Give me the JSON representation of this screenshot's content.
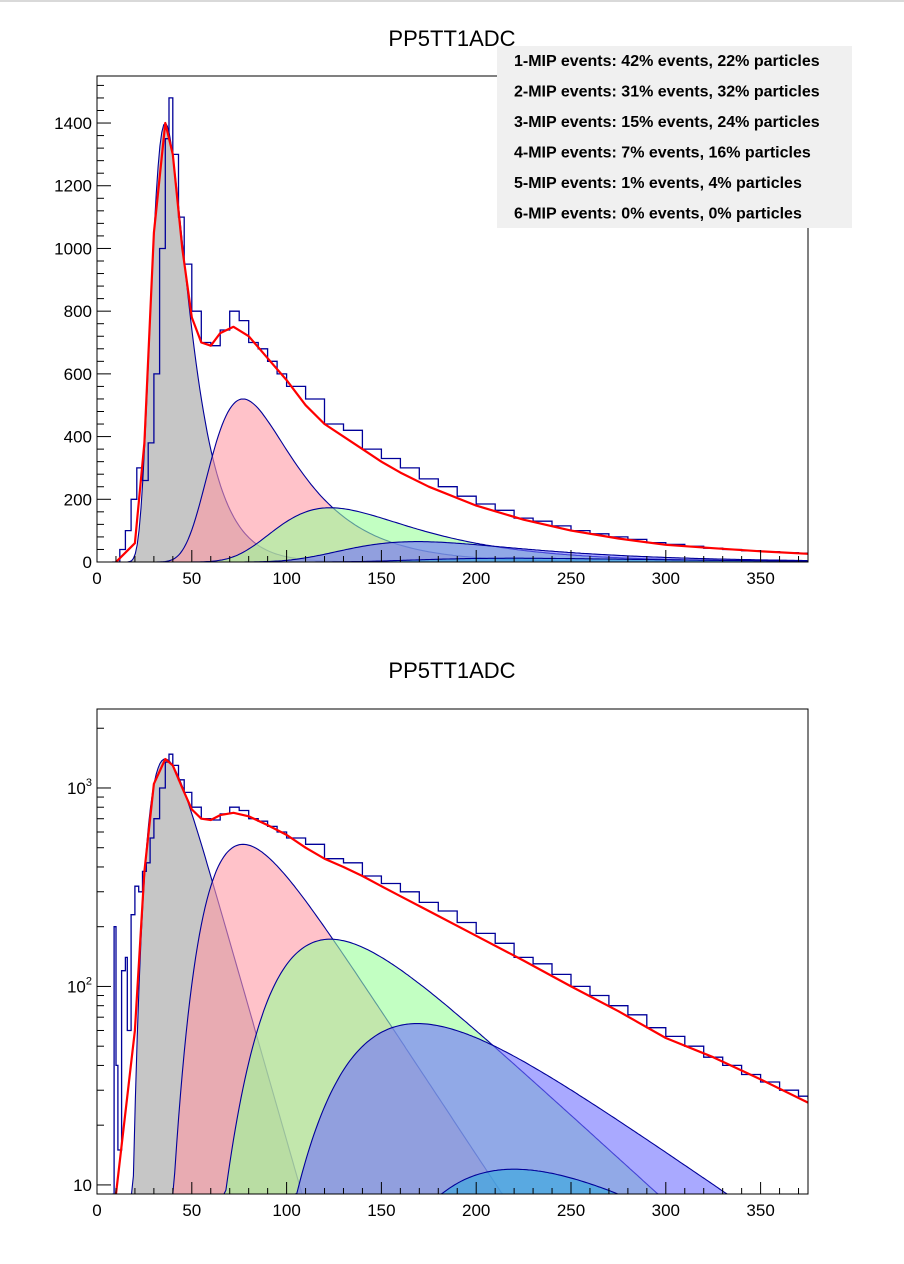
{
  "chart_data": [
    {
      "type": "histogram",
      "title": "PP5TT1ADC",
      "xlabel": "",
      "ylabel": "",
      "xlim": [
        0,
        375
      ],
      "ylim": [
        0,
        1550
      ],
      "yscale": "linear",
      "x_ticks": [
        0,
        50,
        100,
        150,
        200,
        250,
        300,
        350
      ],
      "y_ticks": [
        0,
        200,
        400,
        600,
        800,
        1000,
        1200,
        1400
      ],
      "legend_position": "top-right",
      "legend": [
        "1-MIP events: 42% events, 22% particles",
        "2-MIP events: 31% events, 32% particles",
        "3-MIP events: 15% events, 24% particles",
        "4-MIP events: 7% events, 16% particles",
        "5-MIP events: 1% events, 4% particles",
        "6-MIP events: 0% events, 0% particles"
      ],
      "components": [
        {
          "mip": 1,
          "peak_x": 36,
          "peak_y": 1400,
          "fill": "#a0a0a0"
        },
        {
          "mip": 2,
          "peak_x": 77,
          "peak_y": 520,
          "fill": "#ff9aa5"
        },
        {
          "mip": 3,
          "peak_x": 123,
          "peak_y": 173,
          "fill": "#99ff99"
        },
        {
          "mip": 4,
          "peak_x": 169,
          "peak_y": 65,
          "fill": "#6f6fff"
        },
        {
          "mip": 5,
          "peak_x": 220,
          "peak_y": 12,
          "fill": "#33aadd"
        }
      ],
      "fit_color": "#ff0000",
      "histogram_color": "#000099",
      "total_fit": [
        [
          10,
          0
        ],
        [
          20,
          60
        ],
        [
          25,
          380
        ],
        [
          30,
          1050
        ],
        [
          36,
          1400
        ],
        [
          40,
          1300
        ],
        [
          45,
          1000
        ],
        [
          50,
          780
        ],
        [
          55,
          700
        ],
        [
          60,
          690
        ],
        [
          65,
          730
        ],
        [
          72,
          750
        ],
        [
          80,
          720
        ],
        [
          90,
          650
        ],
        [
          100,
          580
        ],
        [
          110,
          500
        ],
        [
          120,
          440
        ],
        [
          130,
          400
        ],
        [
          140,
          360
        ],
        [
          150,
          320
        ],
        [
          160,
          285
        ],
        [
          175,
          240
        ],
        [
          200,
          180
        ],
        [
          225,
          135
        ],
        [
          250,
          100
        ],
        [
          275,
          75
        ],
        [
          300,
          55
        ],
        [
          325,
          44
        ],
        [
          350,
          34
        ],
        [
          375,
          26
        ]
      ],
      "histogram": [
        [
          8,
          0
        ],
        [
          12,
          40
        ],
        [
          15,
          100
        ],
        [
          18,
          200
        ],
        [
          21,
          300
        ],
        [
          24,
          260
        ],
        [
          27,
          380
        ],
        [
          30,
          600
        ],
        [
          33,
          1000
        ],
        [
          36,
          1350
        ],
        [
          38,
          1480
        ],
        [
          40,
          1300
        ],
        [
          43,
          1100
        ],
        [
          46,
          950
        ],
        [
          50,
          800
        ],
        [
          55,
          700
        ],
        [
          60,
          690
        ],
        [
          65,
          740
        ],
        [
          70,
          800
        ],
        [
          75,
          770
        ],
        [
          80,
          700
        ],
        [
          85,
          680
        ],
        [
          90,
          640
        ],
        [
          95,
          600
        ],
        [
          100,
          560
        ],
        [
          110,
          520
        ],
        [
          120,
          440
        ],
        [
          130,
          420
        ],
        [
          140,
          360
        ],
        [
          150,
          330
        ],
        [
          160,
          300
        ],
        [
          170,
          265
        ],
        [
          180,
          240
        ],
        [
          190,
          210
        ],
        [
          200,
          185
        ],
        [
          210,
          165
        ],
        [
          220,
          140
        ],
        [
          230,
          130
        ],
        [
          240,
          115
        ],
        [
          250,
          100
        ],
        [
          260,
          90
        ],
        [
          270,
          80
        ],
        [
          280,
          72
        ],
        [
          290,
          62
        ],
        [
          300,
          56
        ],
        [
          310,
          50
        ],
        [
          320,
          44
        ],
        [
          330,
          40
        ],
        [
          340,
          36
        ],
        [
          350,
          33
        ],
        [
          360,
          30
        ],
        [
          370,
          28
        ],
        [
          375,
          27
        ]
      ]
    },
    {
      "type": "histogram",
      "title": "PP5TT1ADC",
      "xlabel": "",
      "ylabel": "",
      "xlim": [
        0,
        375
      ],
      "ylim": [
        9,
        2500
      ],
      "yscale": "log",
      "x_ticks": [
        0,
        50,
        100,
        150,
        200,
        250,
        300,
        350
      ],
      "y_tick_labels": [
        {
          "value": 10,
          "base": "10",
          "exp": ""
        },
        {
          "value": 100,
          "base": "10",
          "exp": "2"
        },
        {
          "value": 1000,
          "base": "10",
          "exp": "3"
        }
      ],
      "components": [
        {
          "mip": 1,
          "peak_x": 36,
          "peak_y": 1400,
          "fill": "#a0a0a0"
        },
        {
          "mip": 2,
          "peak_x": 77,
          "peak_y": 520,
          "fill": "#ff9aa5"
        },
        {
          "mip": 3,
          "peak_x": 123,
          "peak_y": 173,
          "fill": "#99ff99"
        },
        {
          "mip": 4,
          "peak_x": 169,
          "peak_y": 65,
          "fill": "#6f6fff"
        },
        {
          "mip": 5,
          "peak_x": 220,
          "peak_y": 12,
          "fill": "#33aadd"
        }
      ],
      "fit_color": "#ff0000",
      "histogram_color": "#000099",
      "total_fit": [
        [
          10,
          9
        ],
        [
          20,
          60
        ],
        [
          25,
          380
        ],
        [
          30,
          1050
        ],
        [
          36,
          1400
        ],
        [
          40,
          1300
        ],
        [
          45,
          1000
        ],
        [
          50,
          780
        ],
        [
          55,
          700
        ],
        [
          60,
          690
        ],
        [
          65,
          730
        ],
        [
          72,
          750
        ],
        [
          80,
          720
        ],
        [
          90,
          650
        ],
        [
          100,
          580
        ],
        [
          110,
          500
        ],
        [
          120,
          440
        ],
        [
          130,
          400
        ],
        [
          140,
          360
        ],
        [
          150,
          320
        ],
        [
          160,
          285
        ],
        [
          175,
          240
        ],
        [
          200,
          180
        ],
        [
          225,
          135
        ],
        [
          250,
          100
        ],
        [
          275,
          75
        ],
        [
          300,
          55
        ],
        [
          325,
          44
        ],
        [
          350,
          34
        ],
        [
          375,
          26
        ]
      ],
      "histogram": [
        [
          8,
          9
        ],
        [
          9,
          200
        ],
        [
          10,
          40
        ],
        [
          11,
          15
        ],
        [
          13,
          120
        ],
        [
          15,
          140
        ],
        [
          16,
          60
        ],
        [
          18,
          230
        ],
        [
          20,
          320
        ],
        [
          22,
          300
        ],
        [
          24,
          380
        ],
        [
          26,
          420
        ],
        [
          28,
          560
        ],
        [
          30,
          700
        ],
        [
          33,
          1000
        ],
        [
          36,
          1350
        ],
        [
          38,
          1480
        ],
        [
          40,
          1300
        ],
        [
          43,
          1100
        ],
        [
          46,
          950
        ],
        [
          50,
          800
        ],
        [
          55,
          700
        ],
        [
          60,
          690
        ],
        [
          65,
          740
        ],
        [
          70,
          800
        ],
        [
          75,
          770
        ],
        [
          80,
          700
        ],
        [
          85,
          680
        ],
        [
          90,
          640
        ],
        [
          95,
          600
        ],
        [
          100,
          560
        ],
        [
          110,
          520
        ],
        [
          120,
          440
        ],
        [
          130,
          420
        ],
        [
          140,
          360
        ],
        [
          150,
          330
        ],
        [
          160,
          300
        ],
        [
          170,
          265
        ],
        [
          180,
          240
        ],
        [
          190,
          210
        ],
        [
          200,
          185
        ],
        [
          210,
          165
        ],
        [
          220,
          140
        ],
        [
          230,
          130
        ],
        [
          240,
          115
        ],
        [
          250,
          100
        ],
        [
          260,
          90
        ],
        [
          270,
          80
        ],
        [
          280,
          72
        ],
        [
          290,
          62
        ],
        [
          300,
          56
        ],
        [
          310,
          50
        ],
        [
          320,
          44
        ],
        [
          330,
          40
        ],
        [
          340,
          36
        ],
        [
          350,
          33
        ],
        [
          360,
          30
        ],
        [
          370,
          28
        ],
        [
          375,
          27
        ]
      ]
    }
  ]
}
